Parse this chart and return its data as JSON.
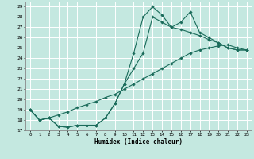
{
  "xlabel": "Humidex (Indice chaleur)",
  "bg_color": "#c4e8e0",
  "grid_color": "#ffffff",
  "line_color": "#1a6b5a",
  "xlim": [
    -0.5,
    23.5
  ],
  "ylim": [
    17,
    29.5
  ],
  "yticks": [
    17,
    18,
    19,
    20,
    21,
    22,
    23,
    24,
    25,
    26,
    27,
    28,
    29
  ],
  "xticks": [
    0,
    1,
    2,
    3,
    4,
    5,
    6,
    7,
    8,
    9,
    10,
    11,
    12,
    13,
    14,
    15,
    16,
    17,
    18,
    19,
    20,
    21,
    22,
    23
  ],
  "line1_x": [
    0,
    1,
    2,
    3,
    4,
    5,
    6,
    7,
    8,
    9,
    10,
    11,
    12,
    13,
    14,
    15,
    16,
    17,
    18,
    19,
    20,
    21,
    22,
    23
  ],
  "line1_y": [
    19.0,
    18.0,
    18.2,
    17.4,
    17.3,
    17.5,
    17.5,
    17.5,
    18.2,
    19.6,
    21.5,
    24.5,
    28.0,
    29.0,
    28.2,
    27.0,
    27.5,
    28.5,
    26.5,
    26.0,
    25.5,
    25.0,
    24.8,
    24.8
  ],
  "line2_x": [
    0,
    1,
    2,
    3,
    4,
    5,
    6,
    7,
    8,
    9,
    10,
    11,
    12,
    13,
    14,
    15,
    16,
    17,
    18,
    19,
    20,
    21,
    22,
    23
  ],
  "line2_y": [
    19.0,
    18.0,
    18.2,
    17.4,
    17.3,
    17.5,
    17.5,
    17.5,
    18.2,
    19.6,
    21.5,
    23.0,
    24.5,
    28.0,
    27.5,
    27.0,
    26.8,
    26.5,
    26.2,
    25.8,
    25.5,
    25.0,
    24.8,
    24.8
  ],
  "line3_x": [
    0,
    1,
    2,
    3,
    4,
    5,
    6,
    7,
    8,
    9,
    10,
    11,
    12,
    13,
    14,
    15,
    16,
    17,
    18,
    19,
    20,
    21,
    22,
    23
  ],
  "line3_y": [
    19.0,
    18.0,
    18.2,
    18.5,
    18.8,
    19.2,
    19.5,
    19.8,
    20.2,
    20.5,
    21.0,
    21.5,
    22.0,
    22.5,
    23.0,
    23.5,
    24.0,
    24.5,
    24.8,
    25.0,
    25.2,
    25.3,
    25.0,
    24.8
  ]
}
